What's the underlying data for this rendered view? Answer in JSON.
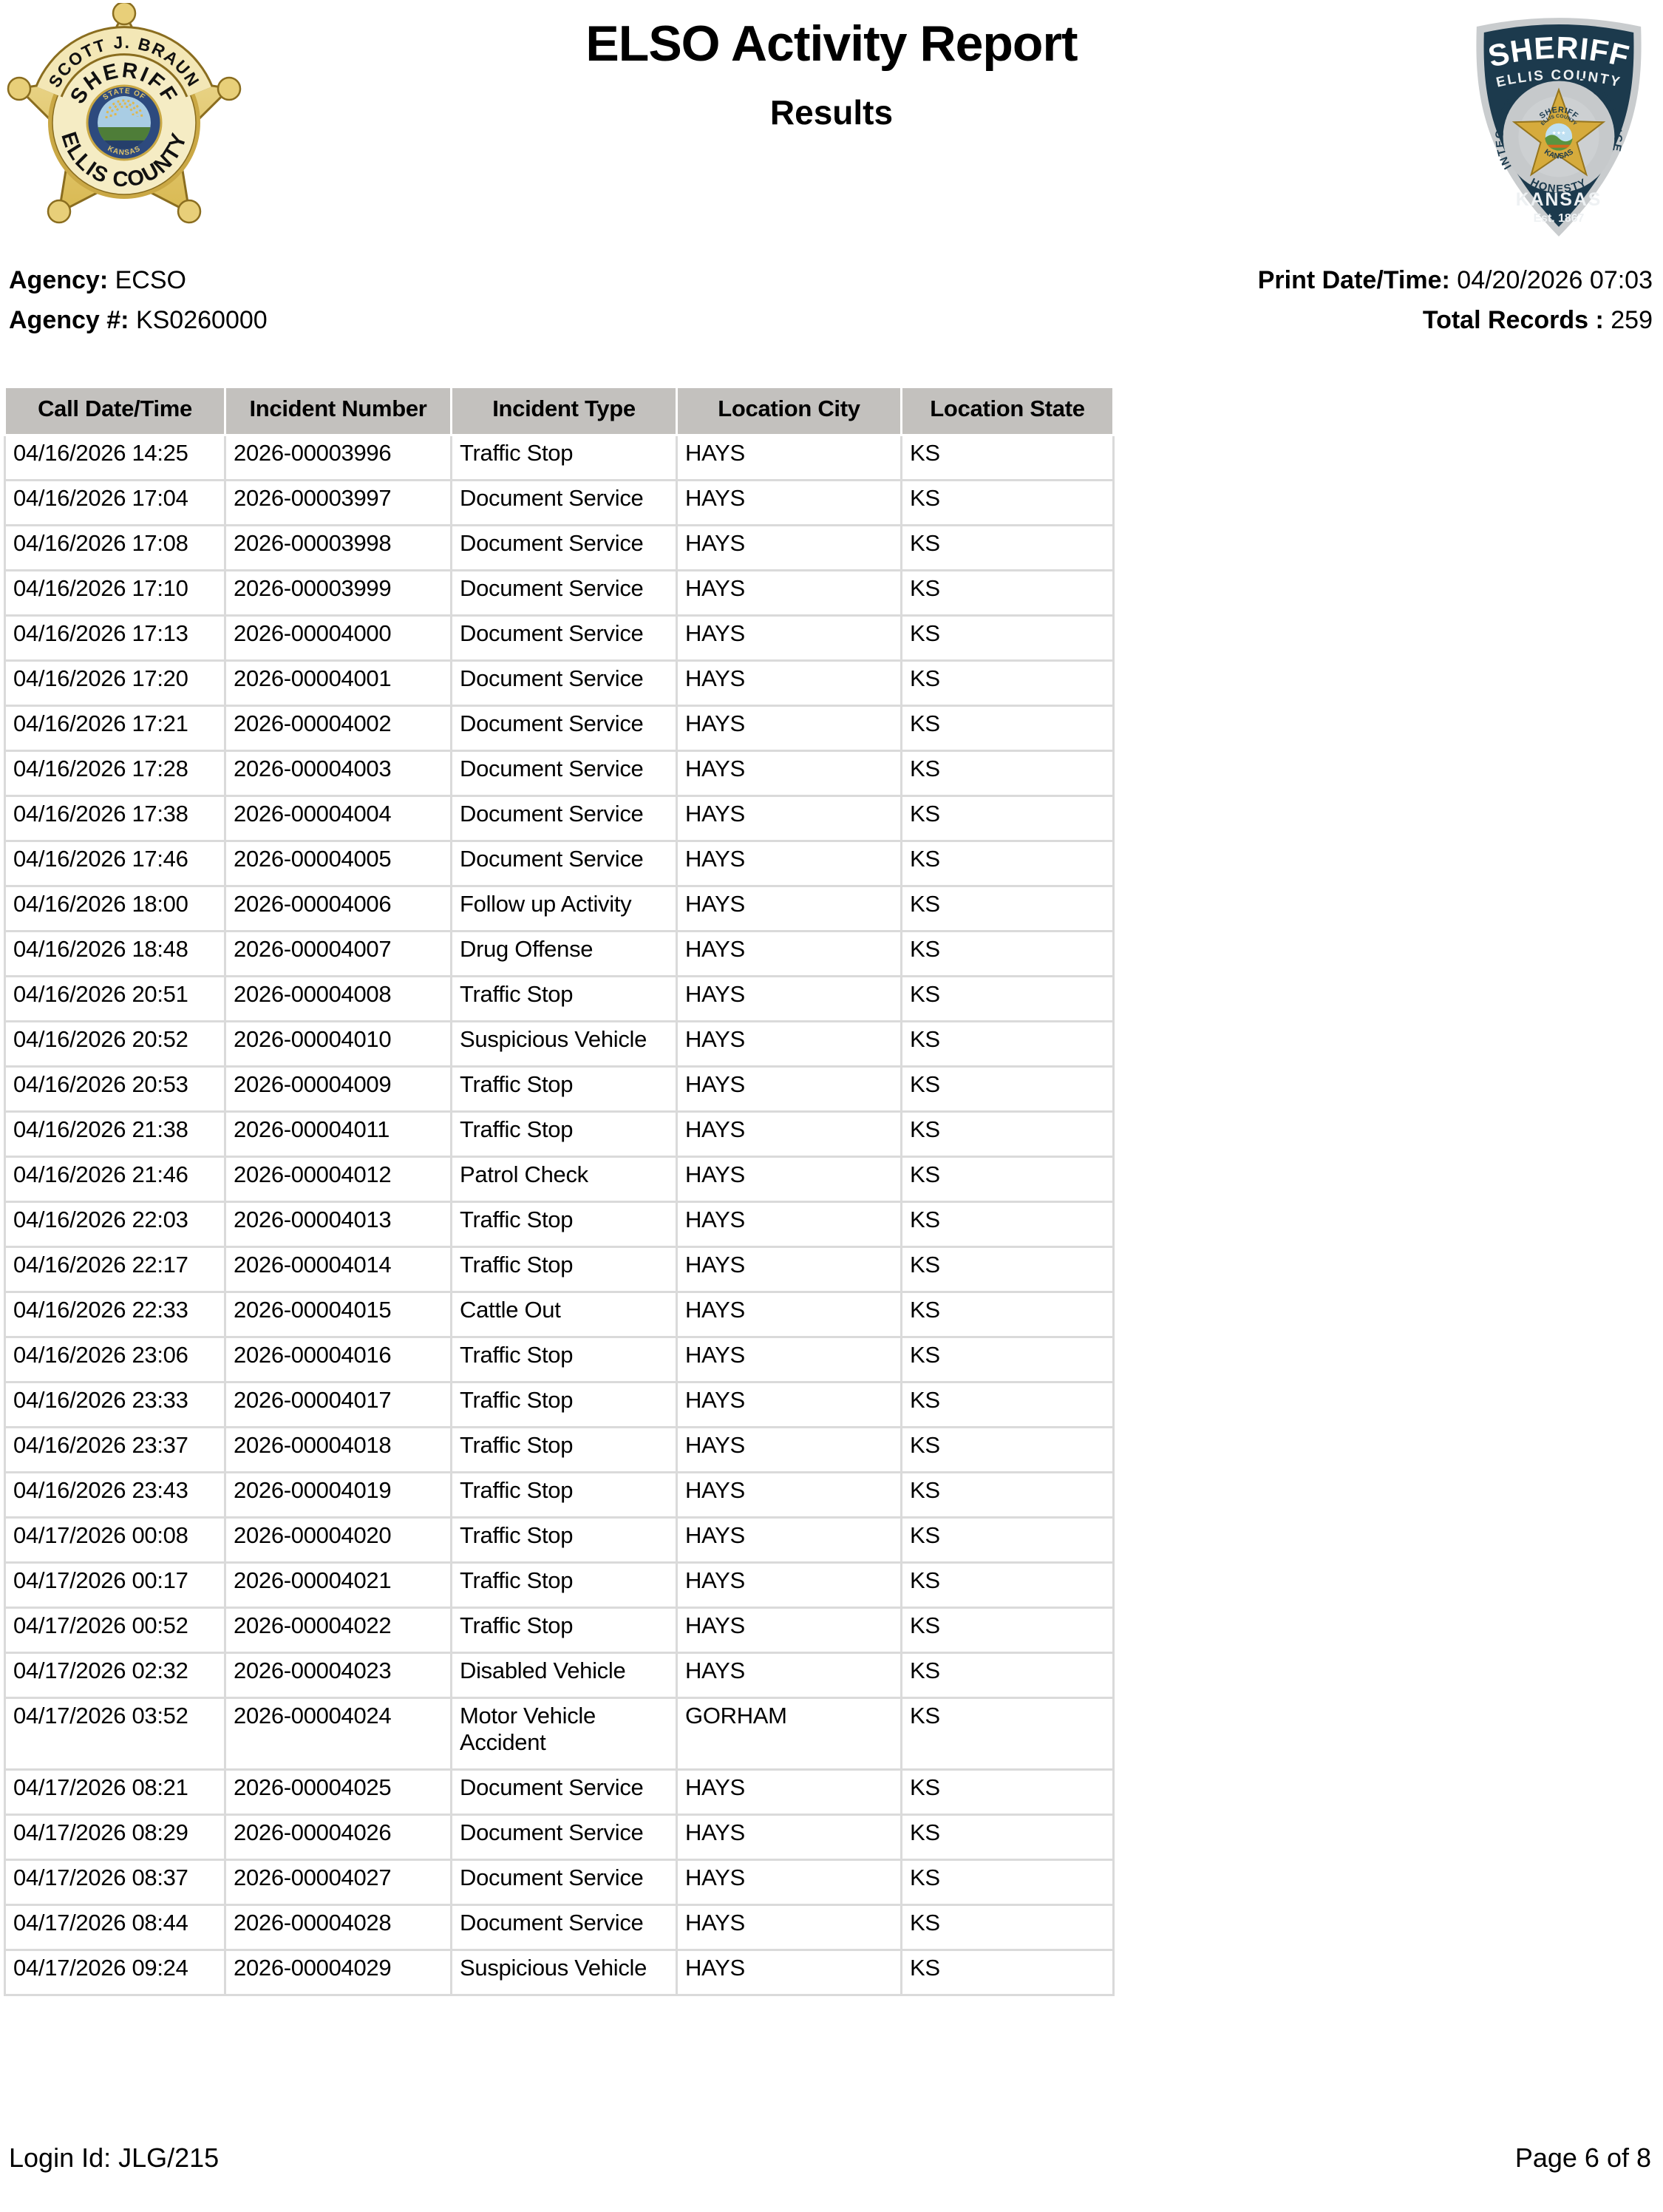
{
  "header": {
    "title": "ELSO Activity Report",
    "subtitle": "Results",
    "agency": {
      "label": "Agency:",
      "value": "ECSO"
    },
    "agency_number": {
      "label": "Agency #:",
      "value": "KS0260000"
    },
    "print_datetime": {
      "label": "Print Date/Time:",
      "value": "04/20/2026 07:03"
    },
    "total_records": {
      "label": "Total Records :",
      "value": "259"
    },
    "left_badge": {
      "name": "SCOTT J. BRAUN",
      "title": "SHERIFF",
      "county": "ELLIS COUNTY",
      "seal_top": "STATE OF",
      "seal_bottom": "KANSAS"
    },
    "right_badge": {
      "top": "SHERIFF",
      "subtitle": "ELLIS COUNTY",
      "ring_left": "INTEGRITY",
      "ring_bottom": "HONESTY",
      "ring_right": "EXCELLENCE",
      "star_top": "SHERIFF",
      "star_mid": "ELLIS COUNTY",
      "star_bottom": "KANSAS",
      "state": "KANSAS",
      "est": "Est. 1867"
    }
  },
  "table": {
    "columns": [
      "Call Date/Time",
      "Incident Number",
      "Incident Type",
      "Location City",
      "Location State"
    ],
    "rows": [
      [
        "04/16/2026 14:25",
        "2026-00003996",
        "Traffic Stop",
        "HAYS",
        "KS"
      ],
      [
        "04/16/2026 17:04",
        "2026-00003997",
        "Document Service",
        "HAYS",
        "KS"
      ],
      [
        "04/16/2026 17:08",
        "2026-00003998",
        "Document Service",
        "HAYS",
        "KS"
      ],
      [
        "04/16/2026 17:10",
        "2026-00003999",
        "Document Service",
        "HAYS",
        "KS"
      ],
      [
        "04/16/2026 17:13",
        "2026-00004000",
        "Document Service",
        "HAYS",
        "KS"
      ],
      [
        "04/16/2026 17:20",
        "2026-00004001",
        "Document Service",
        "HAYS",
        "KS"
      ],
      [
        "04/16/2026 17:21",
        "2026-00004002",
        "Document Service",
        "HAYS",
        "KS"
      ],
      [
        "04/16/2026 17:28",
        "2026-00004003",
        "Document Service",
        "HAYS",
        "KS"
      ],
      [
        "04/16/2026 17:38",
        "2026-00004004",
        "Document Service",
        "HAYS",
        "KS"
      ],
      [
        "04/16/2026 17:46",
        "2026-00004005",
        "Document Service",
        "HAYS",
        "KS"
      ],
      [
        "04/16/2026 18:00",
        "2026-00004006",
        "Follow up Activity",
        "HAYS",
        "KS"
      ],
      [
        "04/16/2026 18:48",
        "2026-00004007",
        "Drug Offense",
        "HAYS",
        "KS"
      ],
      [
        "04/16/2026 20:51",
        "2026-00004008",
        "Traffic Stop",
        "HAYS",
        "KS"
      ],
      [
        "04/16/2026 20:52",
        "2026-00004010",
        "Suspicious Vehicle",
        "HAYS",
        "KS"
      ],
      [
        "04/16/2026 20:53",
        "2026-00004009",
        "Traffic Stop",
        "HAYS",
        "KS"
      ],
      [
        "04/16/2026 21:38",
        "2026-00004011",
        "Traffic Stop",
        "HAYS",
        "KS"
      ],
      [
        "04/16/2026 21:46",
        "2026-00004012",
        "Patrol Check",
        "HAYS",
        "KS"
      ],
      [
        "04/16/2026 22:03",
        "2026-00004013",
        "Traffic Stop",
        "HAYS",
        "KS"
      ],
      [
        "04/16/2026 22:17",
        "2026-00004014",
        "Traffic Stop",
        "HAYS",
        "KS"
      ],
      [
        "04/16/2026 22:33",
        "2026-00004015",
        "Cattle Out",
        "HAYS",
        "KS"
      ],
      [
        "04/16/2026 23:06",
        "2026-00004016",
        "Traffic Stop",
        "HAYS",
        "KS"
      ],
      [
        "04/16/2026 23:33",
        "2026-00004017",
        "Traffic Stop",
        "HAYS",
        "KS"
      ],
      [
        "04/16/2026 23:37",
        "2026-00004018",
        "Traffic Stop",
        "HAYS",
        "KS"
      ],
      [
        "04/16/2026 23:43",
        "2026-00004019",
        "Traffic Stop",
        "HAYS",
        "KS"
      ],
      [
        "04/17/2026 00:08",
        "2026-00004020",
        "Traffic Stop",
        "HAYS",
        "KS"
      ],
      [
        "04/17/2026 00:17",
        "2026-00004021",
        "Traffic Stop",
        "HAYS",
        "KS"
      ],
      [
        "04/17/2026 00:52",
        "2026-00004022",
        "Traffic Stop",
        "HAYS",
        "KS"
      ],
      [
        "04/17/2026 02:32",
        "2026-00004023",
        "Disabled Vehicle",
        "HAYS",
        "KS"
      ],
      [
        "04/17/2026 03:52",
        "2026-00004024",
        "Motor Vehicle Accident",
        "GORHAM",
        "KS"
      ],
      [
        "04/17/2026 08:21",
        "2026-00004025",
        "Document Service",
        "HAYS",
        "KS"
      ],
      [
        "04/17/2026 08:29",
        "2026-00004026",
        "Document Service",
        "HAYS",
        "KS"
      ],
      [
        "04/17/2026 08:37",
        "2026-00004027",
        "Document Service",
        "HAYS",
        "KS"
      ],
      [
        "04/17/2026 08:44",
        "2026-00004028",
        "Document Service",
        "HAYS",
        "KS"
      ],
      [
        "04/17/2026 09:24",
        "2026-00004029",
        "Suspicious Vehicle",
        "HAYS",
        "KS"
      ]
    ]
  },
  "footer": {
    "login": "Login Id: JLG/215",
    "page": "Page 6 of 8"
  }
}
